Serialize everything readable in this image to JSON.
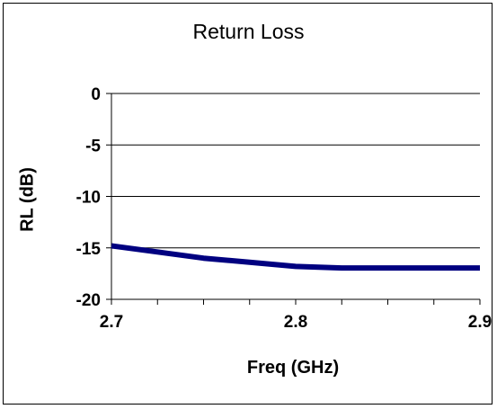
{
  "chart_data": {
    "type": "line",
    "title": "Return Loss",
    "xlabel": "Freq (GHz)",
    "ylabel": "RL (dB)",
    "xlim": [
      2.7,
      2.9
    ],
    "ylim": [
      -20,
      0
    ],
    "x_ticks": [
      "2.7",
      "2.8",
      "2.9"
    ],
    "y_ticks": [
      "0",
      "-5",
      "-10",
      "-15",
      "-20"
    ],
    "grid": "horizontal",
    "legend": "none",
    "series": [
      {
        "color": "#000080",
        "x": [
          2.7,
          2.725,
          2.75,
          2.775,
          2.8,
          2.825,
          2.85,
          2.875,
          2.9
        ],
        "values": [
          -14.8,
          -15.4,
          -16.0,
          -16.4,
          -16.8,
          -16.95,
          -16.95,
          -16.95,
          -16.95
        ]
      }
    ]
  }
}
